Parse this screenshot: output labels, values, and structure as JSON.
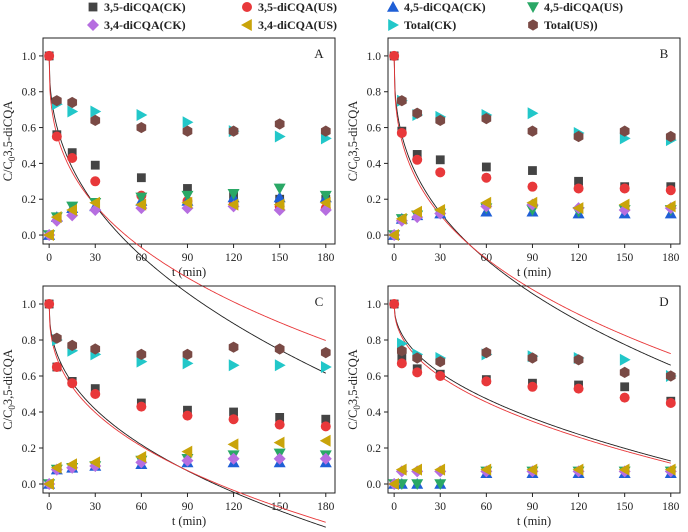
{
  "legend": [
    {
      "label": "3,5-diCQA(CK)",
      "marker": "square",
      "color": "#444444"
    },
    {
      "label": "3,5-diCQA(US)",
      "marker": "circle",
      "color": "#e8383a"
    },
    {
      "label": "4,5-diCQA(CK)",
      "marker": "triangle-up",
      "color": "#1f5fd6"
    },
    {
      "label": "4,5-diCQA(US)",
      "marker": "triangle-down",
      "color": "#2aa866"
    },
    {
      "label": "3,4-diCQA(CK)",
      "marker": "diamond",
      "color": "#b66ee0"
    },
    {
      "label": "3,4-diCQA(US)",
      "marker": "triangle-left",
      "color": "#c9a40a"
    },
    {
      "label": "Total(CK)",
      "marker": "triangle-right",
      "color": "#22c7c9"
    },
    {
      "label": "Total(US))",
      "marker": "hexagon",
      "color": "#7a4a45"
    }
  ],
  "fit_colors": {
    "ck": "#222222",
    "us": "#e8383a"
  },
  "chart_data": [
    {
      "type": "scatter",
      "panel": "A",
      "xlabel": "t (min)",
      "ylabel": "C/C0 3,5-diCQA",
      "ylabel_parts": {
        "c": "C/C",
        "sub": "0",
        "rest": "3,5-diCQA"
      },
      "xlim": [
        -4,
        186
      ],
      "ylim": [
        -0.05,
        1.1
      ],
      "xticks": [
        0,
        30,
        60,
        90,
        120,
        150,
        180
      ],
      "yticks": [
        0.0,
        0.2,
        0.4,
        0.6,
        0.8,
        1.0
      ],
      "x": [
        0,
        5,
        15,
        30,
        60,
        90,
        120,
        150,
        180
      ],
      "series": [
        {
          "name": "3,5-diCQA(CK)",
          "values": [
            1.0,
            0.56,
            0.46,
            0.39,
            0.32,
            0.26,
            0.22,
            0.2,
            0.2
          ]
        },
        {
          "name": "3,5-diCQA(US)",
          "values": [
            1.0,
            0.55,
            0.43,
            0.3,
            0.22,
            0.19,
            0.17,
            0.16,
            0.15
          ]
        },
        {
          "name": "4,5-diCQA(CK)",
          "values": [
            0.0,
            0.1,
            0.15,
            0.16,
            0.19,
            0.19,
            0.21,
            0.21,
            0.21
          ]
        },
        {
          "name": "4,5-diCQA(US)",
          "values": [
            0.0,
            0.1,
            0.16,
            0.18,
            0.21,
            0.22,
            0.23,
            0.26,
            0.22
          ]
        },
        {
          "name": "3,4-diCQA(CK)",
          "values": [
            0.0,
            0.08,
            0.11,
            0.14,
            0.15,
            0.15,
            0.16,
            0.14,
            0.14
          ]
        },
        {
          "name": "3,4-diCQA(US)",
          "values": [
            0.0,
            0.1,
            0.14,
            0.18,
            0.17,
            0.18,
            0.17,
            0.17,
            0.18
          ]
        },
        {
          "name": "Total(CK)",
          "values": [
            null,
            0.73,
            0.69,
            0.69,
            0.67,
            0.63,
            0.58,
            0.55,
            0.54
          ]
        },
        {
          "name": "Total(US))",
          "values": [
            null,
            0.75,
            0.74,
            0.64,
            0.6,
            0.58,
            0.58,
            0.62,
            0.58
          ]
        }
      ],
      "fits": [
        {
          "name": "3,5-diCQA(CK) fit",
          "k": 0.2,
          "n": 0.42
        },
        {
          "name": "3,5-diCQA(US) fit",
          "k": 0.245,
          "n": 0.36
        }
      ]
    },
    {
      "type": "scatter",
      "panel": "B",
      "xlabel": "t (min)",
      "ylabel": "C/C0 3,5-diCQA",
      "ylabel_parts": {
        "c": "C/C",
        "sub": "0",
        "rest": "3,5-diCQA"
      },
      "xlim": [
        -4,
        186
      ],
      "ylim": [
        -0.05,
        1.1
      ],
      "xticks": [
        0,
        30,
        60,
        90,
        120,
        150,
        180
      ],
      "yticks": [
        0.0,
        0.2,
        0.4,
        0.6,
        0.8,
        1.0
      ],
      "x": [
        0,
        5,
        15,
        30,
        60,
        90,
        120,
        150,
        180
      ],
      "series": [
        {
          "name": "3,5-diCQA(CK)",
          "values": [
            1.0,
            0.58,
            0.45,
            0.42,
            0.38,
            0.36,
            0.3,
            0.27,
            0.27
          ]
        },
        {
          "name": "3,5-diCQA(US)",
          "values": [
            1.0,
            0.57,
            0.42,
            0.35,
            0.32,
            0.27,
            0.26,
            0.26,
            0.25
          ]
        },
        {
          "name": "4,5-diCQA(CK)",
          "values": [
            0.0,
            0.09,
            0.11,
            0.12,
            0.13,
            0.13,
            0.12,
            0.12,
            0.12
          ]
        },
        {
          "name": "4,5-diCQA(US)",
          "values": [
            0.0,
            0.09,
            0.11,
            0.12,
            0.15,
            0.14,
            0.13,
            0.14,
            0.14
          ]
        },
        {
          "name": "3,4-diCQA(CK)",
          "values": [
            0.0,
            0.08,
            0.1,
            0.12,
            0.16,
            0.17,
            0.15,
            0.14,
            0.15
          ]
        },
        {
          "name": "3,4-diCQA(US)",
          "values": [
            0.0,
            0.09,
            0.13,
            0.14,
            0.18,
            0.18,
            0.15,
            0.17,
            0.16
          ]
        },
        {
          "name": "Total(CK)",
          "values": [
            null,
            0.75,
            0.67,
            0.66,
            0.67,
            0.68,
            0.57,
            0.54,
            0.53
          ]
        },
        {
          "name": "Total(US))",
          "values": [
            null,
            0.75,
            0.68,
            0.64,
            0.65,
            0.58,
            0.55,
            0.58,
            0.55
          ]
        }
      ],
      "fits": [
        {
          "name": "3,5-diCQA(CK) fit",
          "k": 0.24,
          "n": 0.38
        },
        {
          "name": "3,5-diCQA(US) fit",
          "k": 0.27,
          "n": 0.35
        }
      ]
    },
    {
      "type": "scatter",
      "panel": "C",
      "xlabel": "t (min)",
      "ylabel": "C/C0 3,5-diCQA",
      "ylabel_parts": {
        "c": "C/C",
        "sub": "0",
        "rest": "3,5-diCQA"
      },
      "xlim": [
        -4,
        186
      ],
      "ylim": [
        -0.05,
        1.1
      ],
      "xticks": [
        0,
        30,
        60,
        90,
        120,
        150,
        180
      ],
      "yticks": [
        0.0,
        0.2,
        0.4,
        0.6,
        0.8,
        1.0
      ],
      "x": [
        0,
        5,
        15,
        30,
        60,
        90,
        120,
        150,
        180
      ],
      "series": [
        {
          "name": "3,5-diCQA(CK)",
          "values": [
            1.0,
            0.65,
            0.57,
            0.53,
            0.45,
            0.41,
            0.4,
            0.37,
            0.36
          ]
        },
        {
          "name": "3,5-diCQA(US)",
          "values": [
            1.0,
            0.65,
            0.56,
            0.5,
            0.43,
            0.38,
            0.36,
            0.33,
            0.32
          ]
        },
        {
          "name": "4,5-diCQA(CK)",
          "values": [
            0.0,
            0.08,
            0.09,
            0.1,
            0.11,
            0.12,
            0.12,
            0.12,
            0.12
          ]
        },
        {
          "name": "4,5-diCQA(US)",
          "values": [
            0.0,
            0.08,
            0.09,
            0.1,
            0.13,
            0.14,
            0.16,
            0.17,
            0.16
          ]
        },
        {
          "name": "3,4-diCQA(CK)",
          "values": [
            0.0,
            0.08,
            0.09,
            0.1,
            0.12,
            0.13,
            0.14,
            0.14,
            0.14
          ]
        },
        {
          "name": "3,4-diCQA(US)",
          "values": [
            0.0,
            0.09,
            0.11,
            0.12,
            0.15,
            0.18,
            0.22,
            0.23,
            0.24
          ]
        },
        {
          "name": "Total(CK)",
          "values": [
            null,
            0.8,
            0.74,
            0.72,
            0.68,
            0.67,
            0.66,
            0.66,
            0.65
          ]
        },
        {
          "name": "Total(US))",
          "values": [
            null,
            0.81,
            0.77,
            0.75,
            0.72,
            0.72,
            0.76,
            0.75,
            0.73
          ]
        }
      ],
      "fits": [
        {
          "name": "3,5-diCQA(CK) fit",
          "k": 0.14,
          "n": 0.42
        },
        {
          "name": "3,5-diCQA(US) fit",
          "k": 0.16,
          "n": 0.39
        }
      ]
    },
    {
      "type": "scatter",
      "panel": "D",
      "xlabel": "t (min)",
      "ylabel": "C/C0 3,5-diCQA",
      "ylabel_parts": {
        "c": "C/C",
        "sub": "0",
        "rest": "3,5-diCQA"
      },
      "xlim": [
        -4,
        186
      ],
      "ylim": [
        -0.05,
        1.1
      ],
      "xticks": [
        0,
        30,
        60,
        90,
        120,
        150,
        180
      ],
      "yticks": [
        0.0,
        0.2,
        0.4,
        0.6,
        0.8,
        1.0
      ],
      "x": [
        0,
        5,
        15,
        30,
        60,
        90,
        120,
        150,
        180
      ],
      "series": [
        {
          "name": "3,5-diCQA(CK)",
          "values": [
            1.0,
            0.7,
            0.64,
            0.61,
            0.58,
            0.56,
            0.55,
            0.54,
            0.46
          ]
        },
        {
          "name": "3,5-diCQA(US)",
          "values": [
            1.0,
            0.67,
            0.62,
            0.6,
            0.57,
            0.54,
            0.53,
            0.48,
            0.45
          ]
        },
        {
          "name": "4,5-diCQA(CK)",
          "values": [
            0.0,
            0.0,
            0.0,
            0.0,
            0.06,
            0.06,
            0.06,
            0.06,
            0.06
          ]
        },
        {
          "name": "4,5-diCQA(US)",
          "values": [
            0.0,
            0.0,
            0.0,
            0.0,
            0.07,
            0.07,
            0.07,
            0.07,
            0.07
          ]
        },
        {
          "name": "3,4-diCQA(CK)",
          "values": [
            0.0,
            0.07,
            0.07,
            0.07,
            0.07,
            0.07,
            0.07,
            0.07,
            0.07
          ]
        },
        {
          "name": "3,4-diCQA(US)",
          "values": [
            0.0,
            0.08,
            0.08,
            0.08,
            0.08,
            0.08,
            0.08,
            0.08,
            0.08
          ]
        },
        {
          "name": "Total(CK)",
          "values": [
            null,
            0.78,
            0.72,
            0.7,
            0.72,
            0.71,
            0.7,
            0.69,
            0.6
          ]
        },
        {
          "name": "Total(US))",
          "values": [
            null,
            0.74,
            0.7,
            0.68,
            0.73,
            0.7,
            0.69,
            0.62,
            0.6
          ]
        }
      ],
      "fits": [
        {
          "name": "3,5-diCQA(CK) fit",
          "k": 0.08,
          "n": 0.46
        },
        {
          "name": "3,5-diCQA(US) fit",
          "k": 0.09,
          "n": 0.44
        }
      ]
    }
  ]
}
